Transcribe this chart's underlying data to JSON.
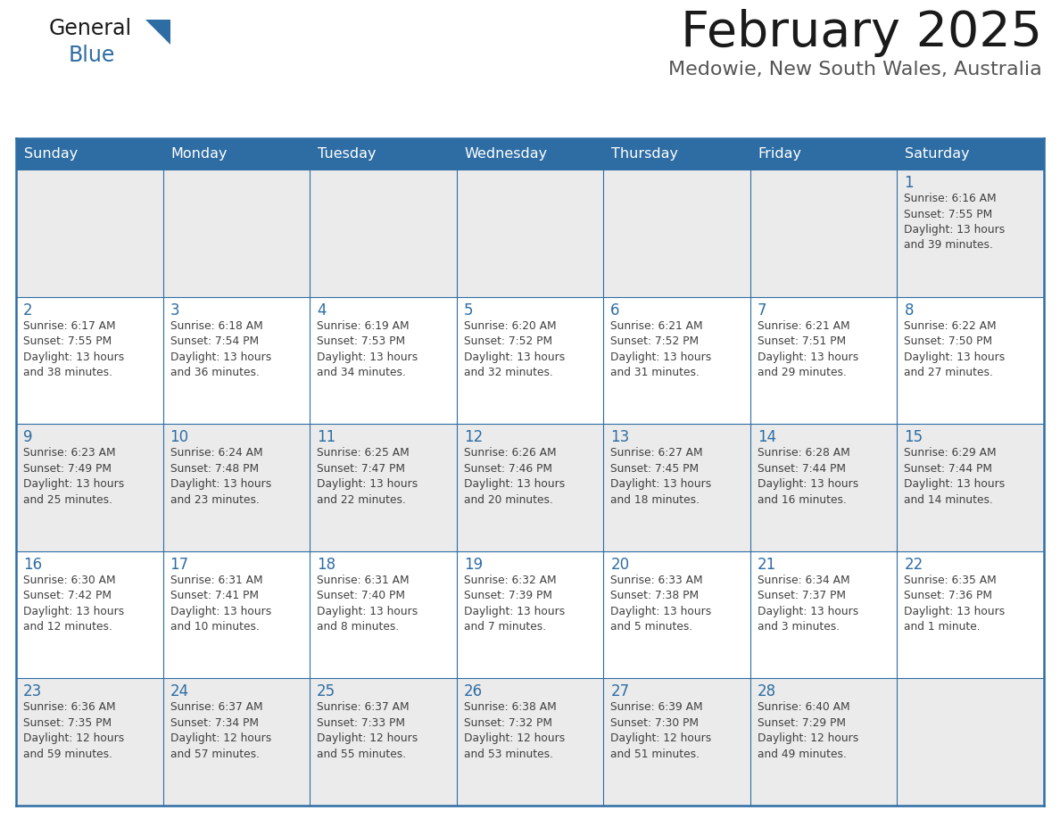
{
  "title": "February 2025",
  "subtitle": "Medowie, New South Wales, Australia",
  "header_color": "#2E6DA4",
  "header_text_color": "#FFFFFF",
  "days_of_week": [
    "Sunday",
    "Monday",
    "Tuesday",
    "Wednesday",
    "Thursday",
    "Friday",
    "Saturday"
  ],
  "background_color": "#FFFFFF",
  "cell_bg_even": "#EBEBEB",
  "cell_bg_odd": "#FFFFFF",
  "border_color": "#2E6DA4",
  "text_color": "#404040",
  "day_number_color": "#2E6DA4",
  "logo_color1": "#1A1A1A",
  "logo_color2": "#2E6DA4",
  "weeks": [
    [
      {
        "date": "",
        "sunrise": "",
        "sunset": "",
        "daylight": ""
      },
      {
        "date": "",
        "sunrise": "",
        "sunset": "",
        "daylight": ""
      },
      {
        "date": "",
        "sunrise": "",
        "sunset": "",
        "daylight": ""
      },
      {
        "date": "",
        "sunrise": "",
        "sunset": "",
        "daylight": ""
      },
      {
        "date": "",
        "sunrise": "",
        "sunset": "",
        "daylight": ""
      },
      {
        "date": "",
        "sunrise": "",
        "sunset": "",
        "daylight": ""
      },
      {
        "date": "1",
        "sunrise": "6:16 AM",
        "sunset": "7:55 PM",
        "daylight": "13 hours and 39 minutes."
      }
    ],
    [
      {
        "date": "2",
        "sunrise": "6:17 AM",
        "sunset": "7:55 PM",
        "daylight": "13 hours and 38 minutes."
      },
      {
        "date": "3",
        "sunrise": "6:18 AM",
        "sunset": "7:54 PM",
        "daylight": "13 hours and 36 minutes."
      },
      {
        "date": "4",
        "sunrise": "6:19 AM",
        "sunset": "7:53 PM",
        "daylight": "13 hours and 34 minutes."
      },
      {
        "date": "5",
        "sunrise": "6:20 AM",
        "sunset": "7:52 PM",
        "daylight": "13 hours and 32 minutes."
      },
      {
        "date": "6",
        "sunrise": "6:21 AM",
        "sunset": "7:52 PM",
        "daylight": "13 hours and 31 minutes."
      },
      {
        "date": "7",
        "sunrise": "6:21 AM",
        "sunset": "7:51 PM",
        "daylight": "13 hours and 29 minutes."
      },
      {
        "date": "8",
        "sunrise": "6:22 AM",
        "sunset": "7:50 PM",
        "daylight": "13 hours and 27 minutes."
      }
    ],
    [
      {
        "date": "9",
        "sunrise": "6:23 AM",
        "sunset": "7:49 PM",
        "daylight": "13 hours and 25 minutes."
      },
      {
        "date": "10",
        "sunrise": "6:24 AM",
        "sunset": "7:48 PM",
        "daylight": "13 hours and 23 minutes."
      },
      {
        "date": "11",
        "sunrise": "6:25 AM",
        "sunset": "7:47 PM",
        "daylight": "13 hours and 22 minutes."
      },
      {
        "date": "12",
        "sunrise": "6:26 AM",
        "sunset": "7:46 PM",
        "daylight": "13 hours and 20 minutes."
      },
      {
        "date": "13",
        "sunrise": "6:27 AM",
        "sunset": "7:45 PM",
        "daylight": "13 hours and 18 minutes."
      },
      {
        "date": "14",
        "sunrise": "6:28 AM",
        "sunset": "7:44 PM",
        "daylight": "13 hours and 16 minutes."
      },
      {
        "date": "15",
        "sunrise": "6:29 AM",
        "sunset": "7:44 PM",
        "daylight": "13 hours and 14 minutes."
      }
    ],
    [
      {
        "date": "16",
        "sunrise": "6:30 AM",
        "sunset": "7:42 PM",
        "daylight": "13 hours and 12 minutes."
      },
      {
        "date": "17",
        "sunrise": "6:31 AM",
        "sunset": "7:41 PM",
        "daylight": "13 hours and 10 minutes."
      },
      {
        "date": "18",
        "sunrise": "6:31 AM",
        "sunset": "7:40 PM",
        "daylight": "13 hours and 8 minutes."
      },
      {
        "date": "19",
        "sunrise": "6:32 AM",
        "sunset": "7:39 PM",
        "daylight": "13 hours and 7 minutes."
      },
      {
        "date": "20",
        "sunrise": "6:33 AM",
        "sunset": "7:38 PM",
        "daylight": "13 hours and 5 minutes."
      },
      {
        "date": "21",
        "sunrise": "6:34 AM",
        "sunset": "7:37 PM",
        "daylight": "13 hours and 3 minutes."
      },
      {
        "date": "22",
        "sunrise": "6:35 AM",
        "sunset": "7:36 PM",
        "daylight": "13 hours and 1 minute."
      }
    ],
    [
      {
        "date": "23",
        "sunrise": "6:36 AM",
        "sunset": "7:35 PM",
        "daylight": "12 hours and 59 minutes."
      },
      {
        "date": "24",
        "sunrise": "6:37 AM",
        "sunset": "7:34 PM",
        "daylight": "12 hours and 57 minutes."
      },
      {
        "date": "25",
        "sunrise": "6:37 AM",
        "sunset": "7:33 PM",
        "daylight": "12 hours and 55 minutes."
      },
      {
        "date": "26",
        "sunrise": "6:38 AM",
        "sunset": "7:32 PM",
        "daylight": "12 hours and 53 minutes."
      },
      {
        "date": "27",
        "sunrise": "6:39 AM",
        "sunset": "7:30 PM",
        "daylight": "12 hours and 51 minutes."
      },
      {
        "date": "28",
        "sunrise": "6:40 AM",
        "sunset": "7:29 PM",
        "daylight": "12 hours and 49 minutes."
      },
      {
        "date": "",
        "sunrise": "",
        "sunset": "",
        "daylight": ""
      }
    ]
  ]
}
